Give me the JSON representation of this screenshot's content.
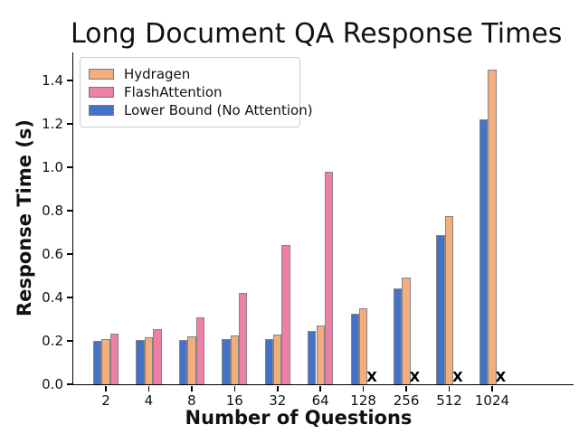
{
  "chart_data": {
    "type": "bar",
    "title": "Long Document QA Response Times",
    "xlabel": "Number of Questions",
    "ylabel": "Response Time (s)",
    "categories": [
      "2",
      "4",
      "8",
      "16",
      "32",
      "64",
      "128",
      "256",
      "512",
      "1024"
    ],
    "series": [
      {
        "name": "Hydragen",
        "color": "#F2AE7D",
        "slot": 1,
        "values": [
          0.21,
          0.215,
          0.22,
          0.225,
          0.23,
          0.27,
          0.35,
          0.49,
          0.775,
          1.45
        ]
      },
      {
        "name": "FlashAttention",
        "color": "#EE7FA7",
        "slot": 2,
        "values": [
          0.235,
          0.255,
          0.31,
          0.42,
          0.64,
          0.98,
          null,
          null,
          null,
          null
        ]
      },
      {
        "name": "Lower Bound (No Attention)",
        "color": "#4472C8",
        "slot": 0,
        "values": [
          0.2,
          0.205,
          0.205,
          0.21,
          0.21,
          0.245,
          0.325,
          0.44,
          0.69,
          1.22
        ]
      }
    ],
    "missing_value_marker": {
      "symbol": "X",
      "series": "FlashAttention",
      "categories": [
        "128",
        "256",
        "512",
        "1024"
      ]
    },
    "yticks": [
      "0.0",
      "0.2",
      "0.4",
      "0.6",
      "0.8",
      "1.0",
      "1.2",
      "1.4"
    ],
    "ylim": [
      0,
      1.53
    ],
    "bar_edge_color": "#848484",
    "legend_position": "upper-left",
    "grid": false
  }
}
